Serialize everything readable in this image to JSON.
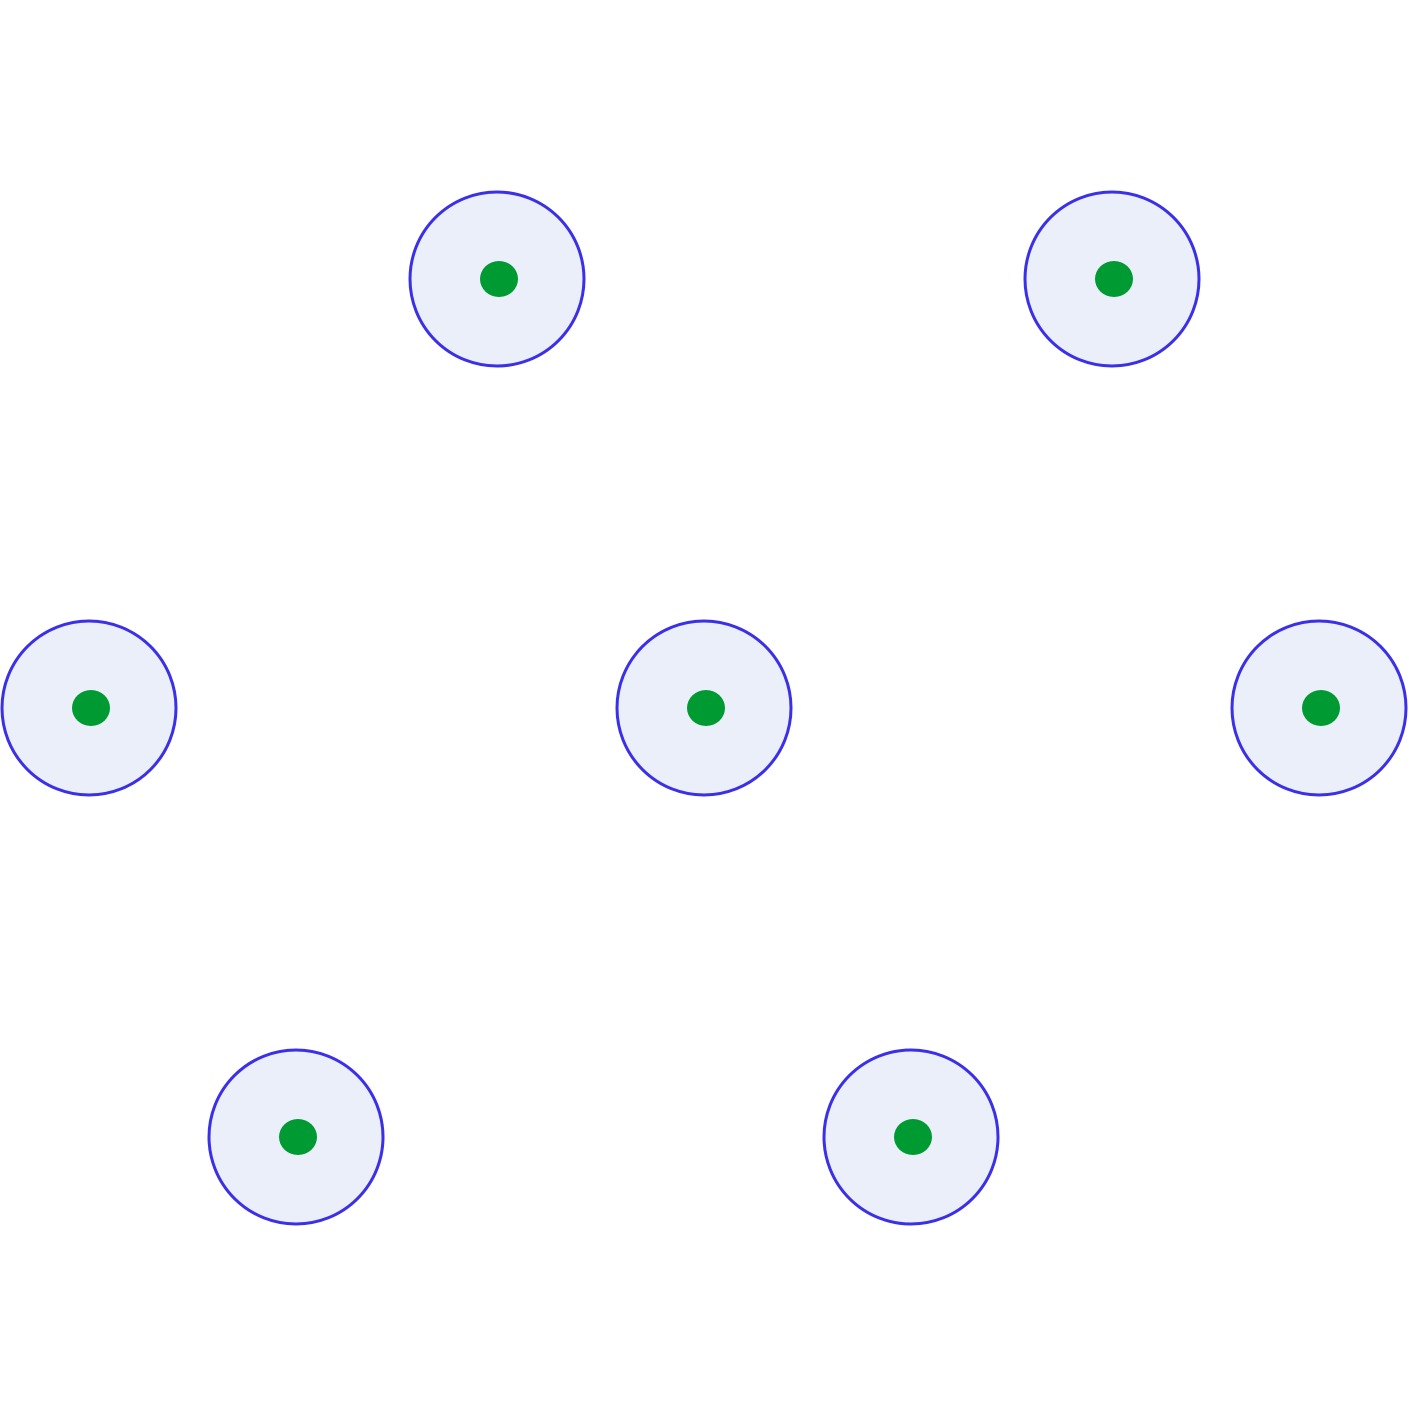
{
  "colors": {
    "background": "#ffffff",
    "circle_fill": "#eaeff9",
    "circle_stroke": "#3b30e8",
    "center_dot": "#009a33"
  },
  "diagram": {
    "rows": [
      2,
      3,
      2
    ]
  }
}
